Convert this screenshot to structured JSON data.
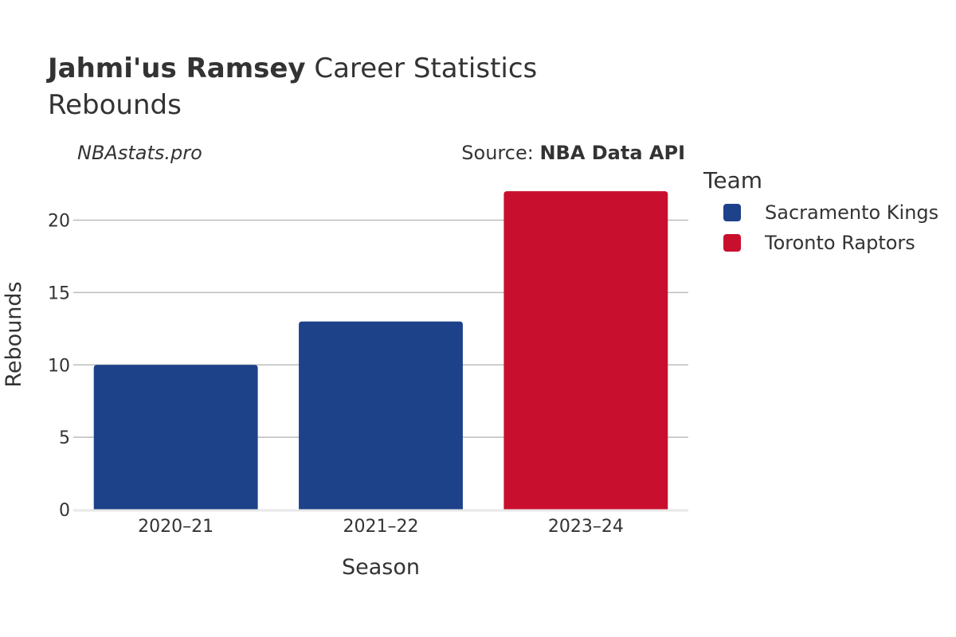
{
  "title": {
    "player": "Jahmi'us Ramsey",
    "suffix": "Career Statistics",
    "stat": "Rebounds"
  },
  "credit": "NBAstats.pro",
  "source": {
    "prefix": "Source: ",
    "name": "NBA Data API"
  },
  "legend": {
    "title": "Team",
    "items": [
      {
        "label": "Sacramento Kings",
        "color": "#1d428a"
      },
      {
        "label": "Toronto Raptors",
        "color": "#c8102e"
      }
    ]
  },
  "chart_data": {
    "type": "bar",
    "categories": [
      "2020–21",
      "2021–22",
      "2023–24"
    ],
    "values": [
      10,
      13,
      22
    ],
    "teams": [
      "Sacramento Kings",
      "Sacramento Kings",
      "Toronto Raptors"
    ],
    "colors": [
      "#1d428a",
      "#1d428a",
      "#c8102e"
    ],
    "xlabel": "Season",
    "ylabel": "Rebounds",
    "ylim": [
      0,
      23
    ],
    "yticks": [
      0,
      5,
      10,
      15,
      20
    ],
    "grid": true,
    "legend_position": "right"
  }
}
